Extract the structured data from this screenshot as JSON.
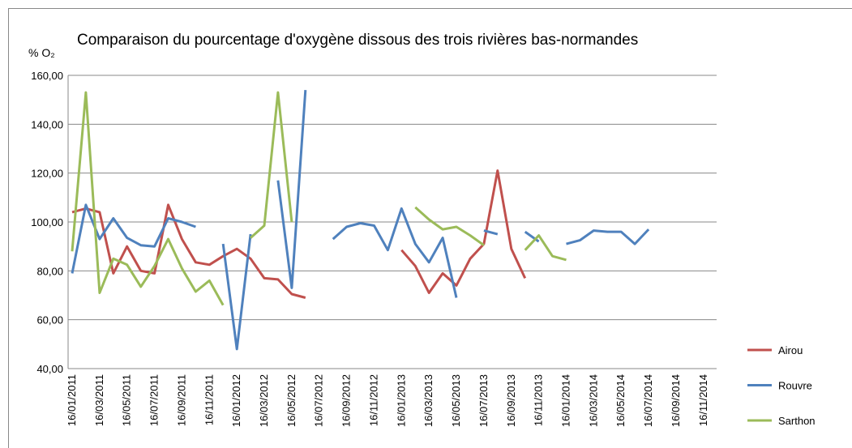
{
  "chart_data": {
    "type": "line",
    "title": "Comparaison du pourcentage d'oxygène dissous des trois rivières bas-normandes",
    "y_label": "% O₂",
    "categories": [
      "16/01/2011",
      null,
      "16/03/2011",
      null,
      "16/05/2011",
      null,
      "16/07/2011",
      null,
      "16/09/2011",
      null,
      "16/11/2011",
      null,
      "16/01/2012",
      null,
      "16/03/2012",
      null,
      "16/05/2012",
      null,
      "16/07/2012",
      null,
      "16/09/2012",
      null,
      "16/11/2012",
      null,
      "16/01/2013",
      null,
      "16/03/2013",
      null,
      "16/05/2013",
      null,
      "16/07/2013",
      null,
      "16/09/2013",
      null,
      "16/11/2013",
      null,
      "16/01/2014",
      null,
      "16/03/2014",
      null,
      "16/05/2014",
      null,
      "16/07/2014",
      null,
      "16/09/2014",
      null,
      "16/11/2014",
      null
    ],
    "series": [
      {
        "name": "Airou",
        "color": "#c0504d",
        "values": [
          104,
          105.5,
          104,
          79,
          90,
          80,
          79,
          107,
          93,
          83.5,
          82.5,
          86,
          89,
          85,
          77,
          76.5,
          70.5,
          69,
          null,
          null,
          null,
          null,
          null,
          null,
          88.5,
          82,
          71,
          79,
          74,
          85,
          91,
          121,
          89,
          77,
          null,
          null,
          null,
          null,
          null,
          null,
          null,
          null,
          null,
          null,
          null,
          null,
          null,
          null
        ]
      },
      {
        "name": "Rouvre",
        "color": "#4f81bd",
        "values": [
          79,
          107,
          93,
          101.5,
          93.5,
          90.5,
          90,
          101.5,
          100,
          98,
          null,
          91,
          48,
          95,
          null,
          117,
          73,
          154,
          null,
          93,
          98,
          99.5,
          98.5,
          88.5,
          105.5,
          91,
          83.5,
          93.5,
          69,
          null,
          96.5,
          95,
          null,
          96,
          92,
          null,
          91,
          92.5,
          96.5,
          96,
          96,
          91,
          97,
          null,
          null,
          null,
          null,
          null
        ]
      },
      {
        "name": "Sarthon",
        "color": "#9bbb59",
        "values": [
          88,
          153,
          71,
          85,
          82.5,
          73.5,
          82,
          93,
          81,
          71.5,
          76,
          66,
          null,
          93.5,
          98.5,
          153,
          100,
          null,
          null,
          null,
          null,
          null,
          null,
          null,
          null,
          106,
          101,
          97,
          98,
          94.5,
          90.5,
          null,
          null,
          88.5,
          94.5,
          86,
          84.5,
          null,
          null,
          null,
          null,
          null,
          null,
          null,
          null,
          null,
          null,
          null
        ]
      }
    ],
    "ylim": [
      40,
      160
    ],
    "yticks": [
      {
        "value": 40,
        "label": "40,00"
      },
      {
        "value": 60,
        "label": "60,00"
      },
      {
        "value": 80,
        "label": "80,00"
      },
      {
        "value": 100,
        "label": "100,00"
      },
      {
        "value": 120,
        "label": "120,00"
      },
      {
        "value": 140,
        "label": "140,00"
      },
      {
        "value": 160,
        "label": "160,00"
      }
    ],
    "grid": true,
    "legend": "right"
  }
}
